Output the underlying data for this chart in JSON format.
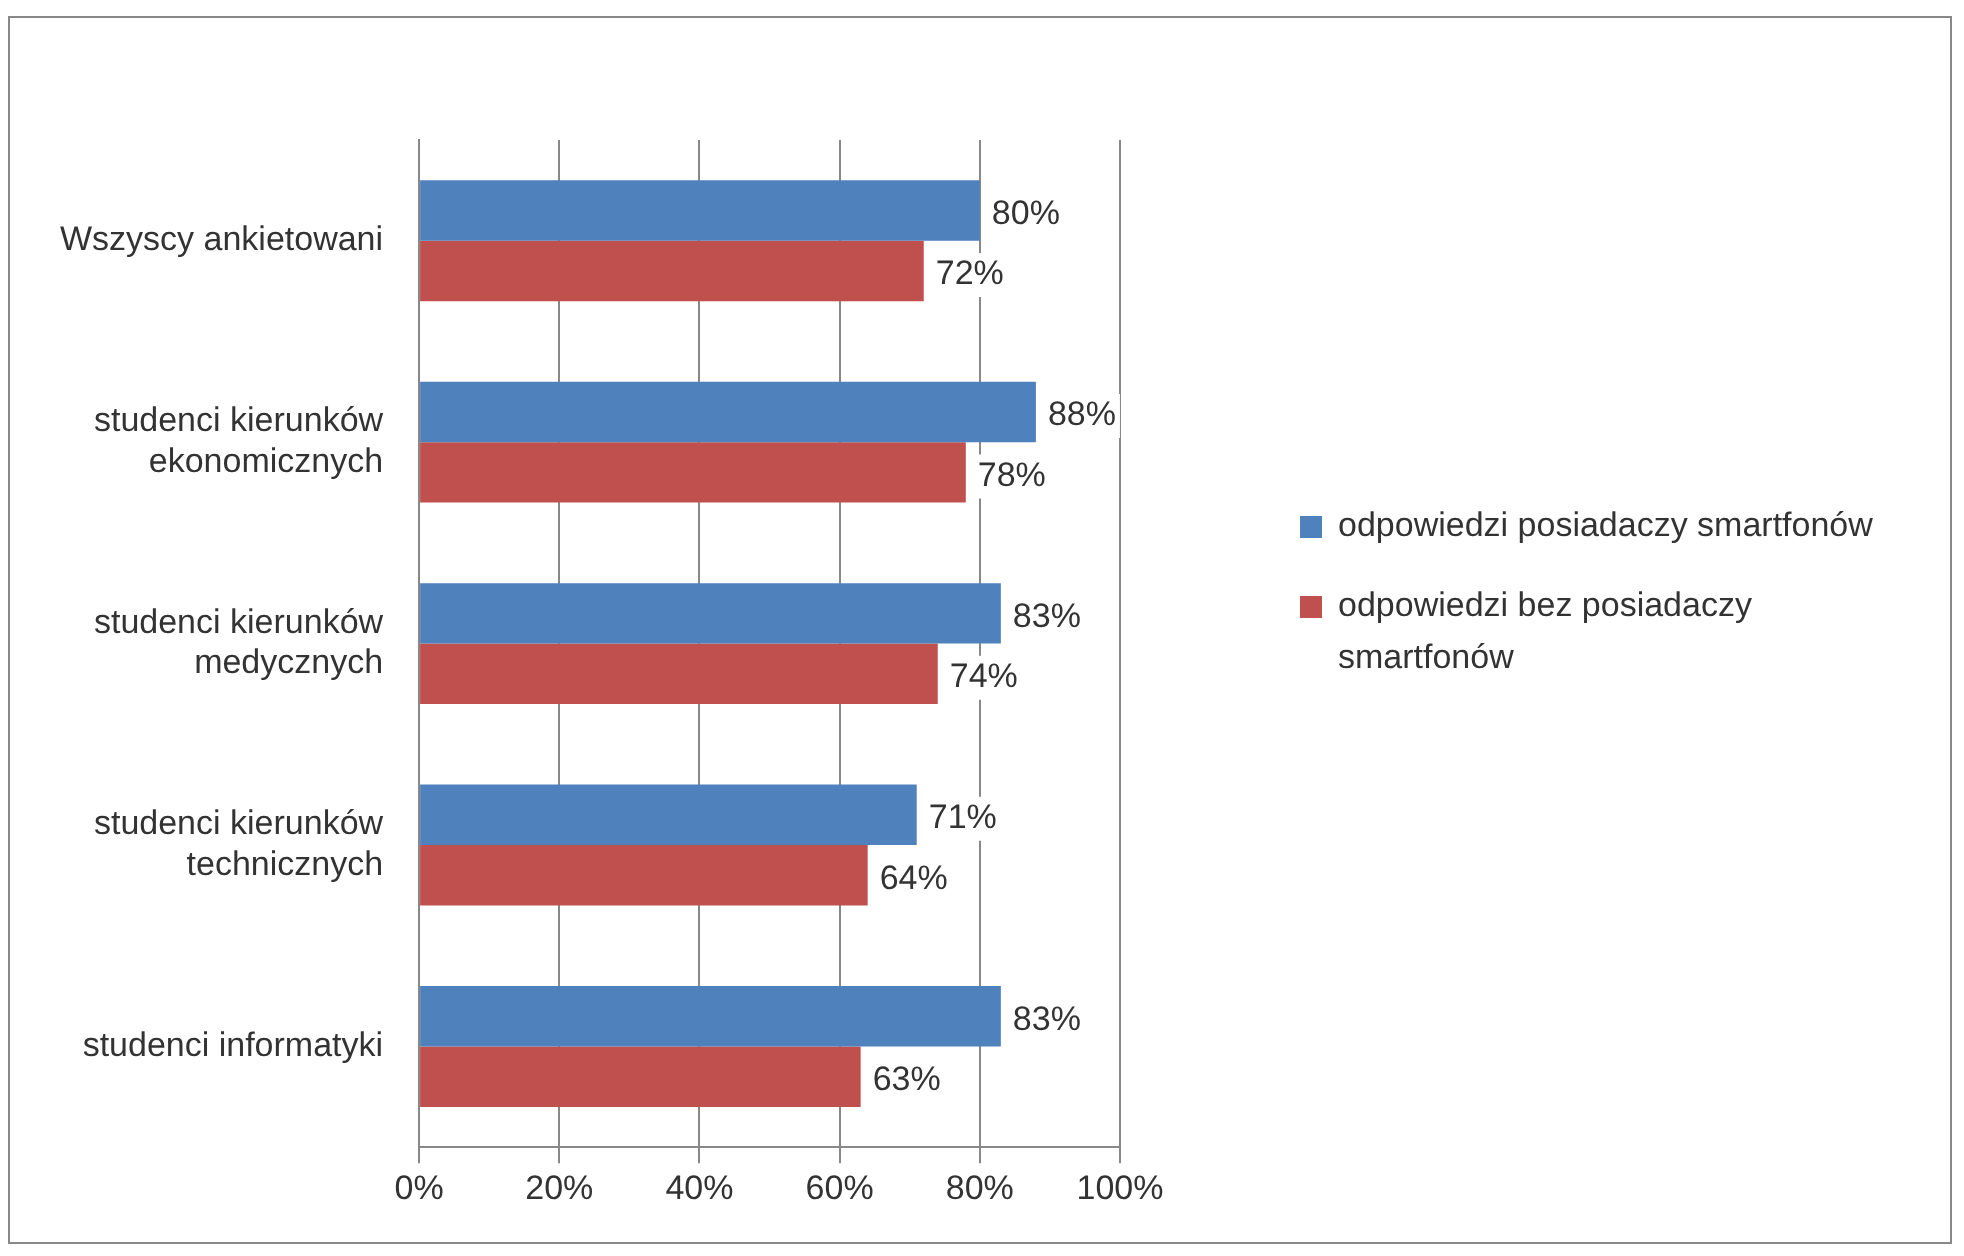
{
  "chart_data": {
    "type": "bar",
    "orientation": "horizontal",
    "categories": [
      "Wszyscy ankietowani",
      "studenci kierunków ekonomicznych",
      "studenci kierunków medycznych",
      "studenci kierunków technicznych",
      "studenci informatyki"
    ],
    "series": [
      {
        "name": "odpowiedzi posiadaczy smartfonów",
        "color": "#4f81bd",
        "values": [
          80,
          88,
          83,
          71,
          83
        ],
        "value_labels": [
          "80%",
          "88%",
          "83%",
          "71%",
          "83%"
        ]
      },
      {
        "name": "odpowiedzi bez posiadaczy smartfonów",
        "color": "#c0504d",
        "values": [
          72,
          78,
          74,
          64,
          63
        ],
        "value_labels": [
          "72%",
          "78%",
          "74%",
          "64%",
          "63%"
        ]
      }
    ],
    "xlim": [
      0,
      100
    ],
    "xticks": [
      {
        "value": 0,
        "label": "0%"
      },
      {
        "value": 20,
        "label": "20%"
      },
      {
        "value": 40,
        "label": "40%"
      },
      {
        "value": 60,
        "label": "60%"
      },
      {
        "value": 80,
        "label": "80%"
      },
      {
        "value": 100,
        "label": "100%"
      }
    ],
    "grid": "x",
    "legend": "right"
  }
}
